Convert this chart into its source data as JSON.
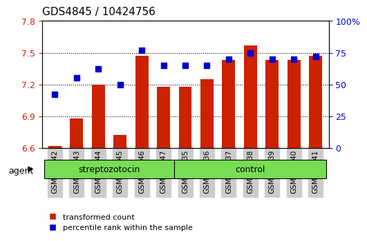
{
  "title": "GDS4845 / 10424756",
  "samples": [
    "GSM978542",
    "GSM978543",
    "GSM978544",
    "GSM978545",
    "GSM978546",
    "GSM978547",
    "GSM978535",
    "GSM978536",
    "GSM978537",
    "GSM978538",
    "GSM978539",
    "GSM978540",
    "GSM978541"
  ],
  "bar_values": [
    6.62,
    6.88,
    7.2,
    6.72,
    7.47,
    7.18,
    7.18,
    7.25,
    7.43,
    7.57,
    7.43,
    7.43,
    7.47
  ],
  "dot_values": [
    42,
    55,
    62,
    50,
    77,
    65,
    65,
    65,
    70,
    75,
    70,
    70,
    72
  ],
  "ylim_left": [
    6.6,
    7.8
  ],
  "ylim_right": [
    0,
    100
  ],
  "yticks_left": [
    6.6,
    6.9,
    7.2,
    7.5,
    7.8
  ],
  "yticks_right": [
    0,
    25,
    50,
    75,
    100
  ],
  "ytick_labels_left": [
    "6.6",
    "6.9",
    "7.2",
    "7.5",
    "7.8"
  ],
  "ytick_labels_right": [
    "0",
    "25",
    "50",
    "75",
    "100%"
  ],
  "bar_color": "#cc2200",
  "dot_color": "#0000cc",
  "bar_bottom": 6.6,
  "groups": [
    {
      "label": "streptozotocin",
      "start": 0,
      "end": 5,
      "color": "#88ee66"
    },
    {
      "label": "control",
      "start": 6,
      "end": 12,
      "color": "#88ee66"
    }
  ],
  "group_separator": 5.5,
  "agent_label": "agent",
  "legend_items": [
    {
      "color": "#cc2200",
      "label": "transformed count"
    },
    {
      "color": "#0000cc",
      "label": "percentile rank within the sample"
    }
  ],
  "grid_linestyle": "dotted",
  "tick_label_color_left": "#cc2200",
  "tick_label_color_right": "#0000cc",
  "bar_width": 0.6,
  "dot_size": 40,
  "dot_marker": "s"
}
